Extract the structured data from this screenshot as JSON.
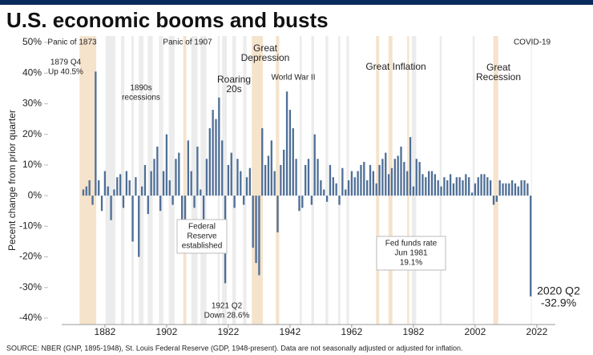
{
  "chart_data": {
    "type": "bar",
    "title": "U.S. economic booms and busts",
    "y_label": "Pecent change from prior quarter",
    "source": "SOURCE: NBER (GNP, 1895-1948), St. Louis Federal Reserve (GDP, 1948-present). Data are not seasonally adjusted or adjusted for inflation.",
    "color": "#4f6f97",
    "x": [
      1875,
      1876,
      1877,
      1878,
      1879,
      1880,
      1881,
      1882,
      1883,
      1884,
      1885,
      1886,
      1887,
      1888,
      1889,
      1890,
      1891,
      1892,
      1893,
      1894,
      1895,
      1896,
      1897,
      1898,
      1899,
      1900,
      1901,
      1902,
      1903,
      1904,
      1905,
      1906,
      1907,
      1908,
      1909,
      1910,
      1911,
      1912,
      1913,
      1914,
      1915,
      1916,
      1917,
      1918,
      1919,
      1920,
      1921,
      1922,
      1923,
      1924,
      1925,
      1926,
      1927,
      1928,
      1929,
      1930,
      1931,
      1932,
      1933,
      1934,
      1935,
      1936,
      1937,
      1938,
      1939,
      1940,
      1941,
      1942,
      1943,
      1944,
      1945,
      1946,
      1947,
      1948,
      1949,
      1950,
      1951,
      1952,
      1953,
      1954,
      1955,
      1956,
      1957,
      1958,
      1959,
      1960,
      1961,
      1962,
      1963,
      1964,
      1965,
      1966,
      1967,
      1968,
      1969,
      1970,
      1971,
      1972,
      1973,
      1974,
      1975,
      1976,
      1977,
      1978,
      1979,
      1980,
      1981,
      1982,
      1983,
      1984,
      1985,
      1986,
      1987,
      1988,
      1989,
      1990,
      1991,
      1992,
      1993,
      1994,
      1995,
      1996,
      1997,
      1998,
      1999,
      2000,
      2001,
      2002,
      2003,
      2004,
      2005,
      2006,
      2007,
      2008,
      2009,
      2010,
      2011,
      2012,
      2013,
      2014,
      2015,
      2016,
      2017,
      2018,
      2019,
      2020
    ],
    "values": [
      2,
      3,
      5,
      -3,
      40.5,
      5,
      -5,
      8,
      3,
      -8,
      2,
      6,
      7,
      -4,
      8,
      5,
      -15,
      6,
      -20,
      3,
      10,
      -6,
      8,
      12,
      16,
      -5,
      8,
      20,
      5,
      -3,
      12,
      14,
      -10,
      -12,
      18,
      8,
      -4,
      16,
      2,
      -8,
      12,
      22,
      28,
      25,
      32,
      18,
      -28.6,
      10,
      14,
      -4,
      12,
      8,
      -3,
      6,
      9,
      -17,
      -22,
      -26,
      22,
      10,
      13,
      18,
      8,
      -12,
      10,
      15,
      34,
      28,
      22,
      12,
      -5,
      -4,
      10,
      12,
      -3,
      20,
      12,
      5,
      2,
      -2,
      10,
      6,
      4,
      -3,
      9,
      2,
      5,
      8,
      6,
      8,
      10,
      11,
      5,
      10,
      8,
      4,
      10,
      12,
      14,
      7,
      9,
      12,
      13,
      16,
      11,
      8,
      19.1,
      3,
      12,
      11,
      7,
      6,
      8,
      8,
      7,
      5,
      3,
      6,
      5,
      7,
      4,
      6,
      6,
      5,
      7,
      6,
      1,
      4,
      6,
      7,
      7,
      6,
      5,
      -3,
      -2,
      5,
      4,
      4,
      4,
      5,
      4,
      3,
      5,
      5,
      4,
      -32.9
    ],
    "shaded_periods": [
      {
        "start": 1873.8,
        "end": 1879.2,
        "color": "#f5e3cc"
      },
      {
        "start": 1882.2,
        "end": 1885.4,
        "color": "#ececec"
      },
      {
        "start": 1887.2,
        "end": 1888.3,
        "color": "#ececec"
      },
      {
        "start": 1890.6,
        "end": 1891.4,
        "color": "#ececec"
      },
      {
        "start": 1893,
        "end": 1894.5,
        "color": "#ececec"
      },
      {
        "start": 1895.9,
        "end": 1897.5,
        "color": "#ececec"
      },
      {
        "start": 1899.5,
        "end": 1900.9,
        "color": "#ececec"
      },
      {
        "start": 1902.7,
        "end": 1904.6,
        "color": "#ececec"
      },
      {
        "start": 1907.4,
        "end": 1908.4,
        "color": "#f5e3cc"
      },
      {
        "start": 1910,
        "end": 1912,
        "color": "#ececec"
      },
      {
        "start": 1913,
        "end": 1914.9,
        "color": "#ececec"
      },
      {
        "start": 1918.6,
        "end": 1919.2,
        "color": "#ececec"
      },
      {
        "start": 1920,
        "end": 1921.5,
        "color": "#ececec"
      },
      {
        "start": 1923.3,
        "end": 1924.5,
        "color": "#ececec"
      },
      {
        "start": 1926.8,
        "end": 1927.9,
        "color": "#ececec"
      },
      {
        "start": 1929.6,
        "end": 1933.2,
        "color": "#f5e3cc"
      },
      {
        "start": 1937.4,
        "end": 1938.5,
        "color": "#f5e3cc"
      },
      {
        "start": 1945.1,
        "end": 1945.8,
        "color": "#ececec"
      },
      {
        "start": 1948.9,
        "end": 1949.8,
        "color": "#ececec"
      },
      {
        "start": 1953.5,
        "end": 1954.4,
        "color": "#ececec"
      },
      {
        "start": 1957.6,
        "end": 1958.3,
        "color": "#ececec"
      },
      {
        "start": 1960.3,
        "end": 1961.1,
        "color": "#ececec"
      },
      {
        "start": 1969.9,
        "end": 1970.9,
        "color": "#f5e3cc"
      },
      {
        "start": 1973.9,
        "end": 1975.2,
        "color": "#f5e3cc"
      },
      {
        "start": 1980,
        "end": 1980.6,
        "color": "#f5e3cc"
      },
      {
        "start": 1981.5,
        "end": 1982.9,
        "color": "#ececec"
      },
      {
        "start": 1990.5,
        "end": 1991.2,
        "color": "#ececec"
      },
      {
        "start": 2001.2,
        "end": 2001.9,
        "color": "#ececec"
      },
      {
        "start": 2007.9,
        "end": 2009.5,
        "color": "#f5e3cc"
      },
      {
        "start": 2020.1,
        "end": 2020.4,
        "color": "#ececec"
      }
    ],
    "annotations": [
      [
        "Panic of 1873"
      ],
      [
        "1879 Q4",
        "Up 40.5%"
      ],
      [
        "1890s",
        "recessions"
      ],
      [
        "Panic of 1907"
      ],
      [
        "Roaring",
        "20s"
      ],
      [
        "Great",
        "Depression"
      ],
      [
        "World War II"
      ],
      [
        "Great Inflation"
      ],
      [
        "Great",
        "Recession"
      ],
      [
        "COVID-19"
      ],
      [
        "Federal",
        "Reserve",
        "established"
      ],
      [
        "1921 Q2",
        "Down 28.6%"
      ],
      [
        "Fed funds rate",
        "Jun 1981",
        "19.1%"
      ],
      [
        "2020 Q2",
        "-32.9%"
      ]
    ],
    "xlim": [
      1868,
      2028
    ],
    "xticks": [
      1882,
      1902,
      1922,
      1942,
      1962,
      1982,
      2002,
      2022
    ],
    "ylim": [
      -40,
      50
    ],
    "yticks": [
      {
        "value": -40,
        "label": "-40%"
      },
      {
        "value": -30,
        "label": "-30%"
      },
      {
        "value": -20,
        "label": "-20%"
      },
      {
        "value": -10,
        "label": "-10%"
      },
      {
        "value": 0,
        "label": "0%"
      },
      {
        "value": 10,
        "label": "10%"
      },
      {
        "value": 20,
        "label": "20%"
      },
      {
        "value": 30,
        "label": "30%"
      },
      {
        "value": 40,
        "label": "40%"
      },
      {
        "value": 50,
        "label": "50%"
      }
    ]
  }
}
